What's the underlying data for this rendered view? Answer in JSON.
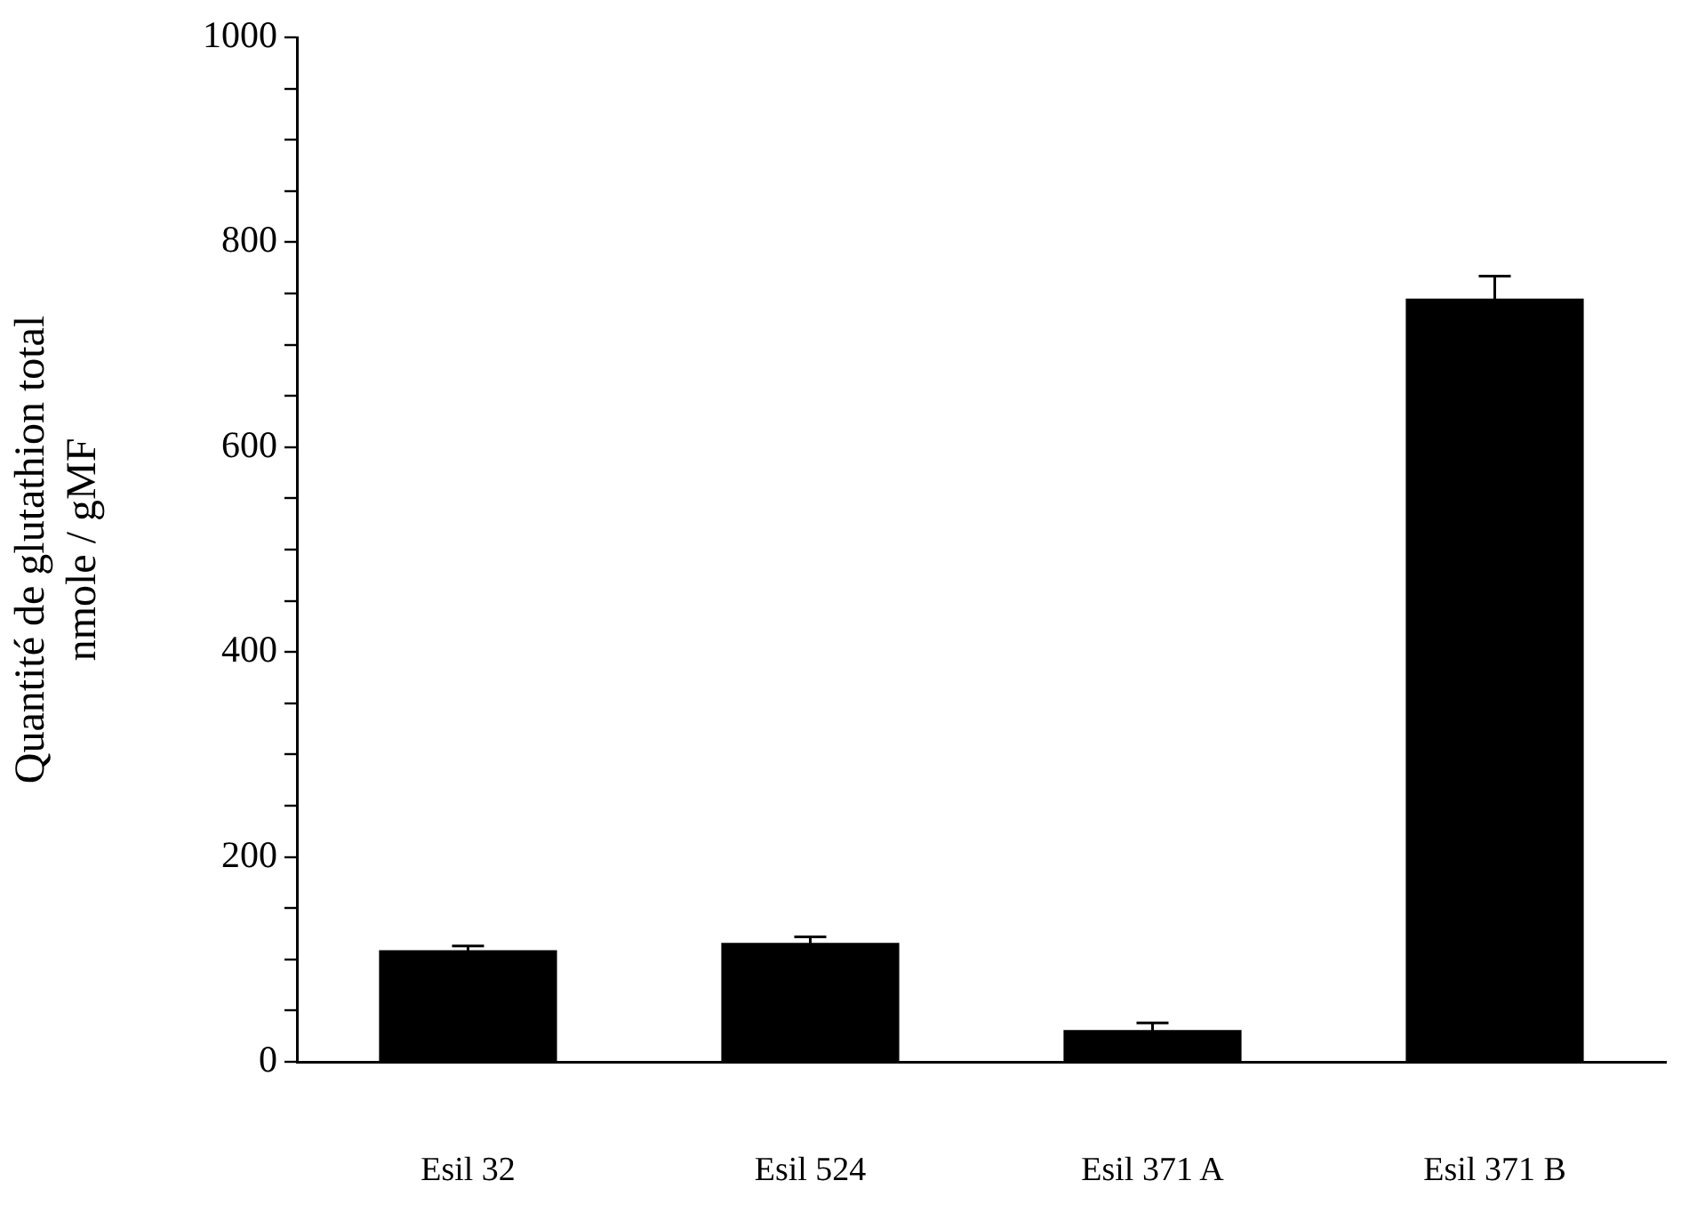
{
  "chart_data": {
    "type": "bar",
    "categories": [
      "Esil 32",
      "Esil 524",
      "Esil 371 A",
      "Esil 371 B"
    ],
    "values": [
      109,
      116,
      31,
      745
    ],
    "errors": [
      4,
      6,
      7,
      22
    ],
    "color": "#000000",
    "ylabel": "Quantité de glutathion total\nnmole / gMF",
    "ylim": [
      0,
      1000
    ],
    "yticks": [
      0,
      {
        "value": 50,
        "label": null
      },
      {
        "value": 100,
        "label": null
      },
      {
        "value": 150,
        "label": null
      },
      200,
      {
        "value": 250,
        "label": null
      },
      {
        "value": 300,
        "label": null
      },
      {
        "value": 350,
        "label": null
      },
      400,
      {
        "value": 450,
        "label": null
      },
      {
        "value": 500,
        "label": null
      },
      {
        "value": 550,
        "label": null
      },
      600,
      {
        "value": 650,
        "label": null
      },
      {
        "value": 700,
        "label": null
      },
      {
        "value": 750,
        "label": null
      },
      800,
      {
        "value": 850,
        "label": null
      },
      {
        "value": 900,
        "label": null
      },
      {
        "value": 950,
        "label": null
      },
      1000
    ],
    "grid": false,
    "legend": false
  }
}
